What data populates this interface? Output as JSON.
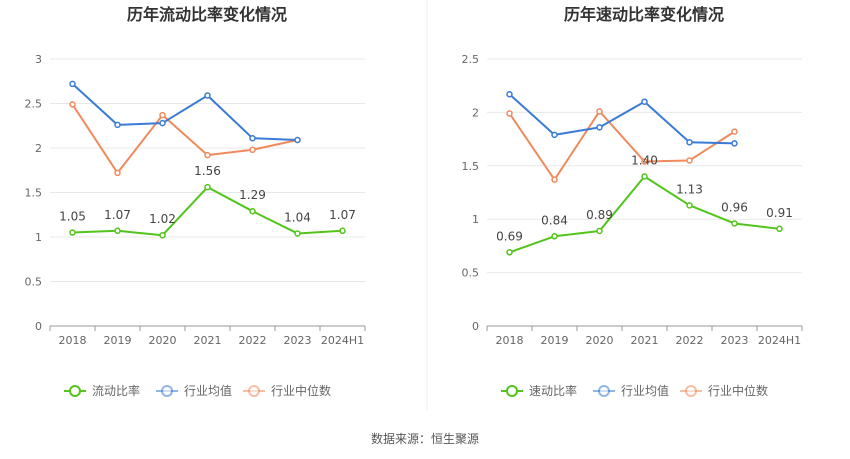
{
  "source": "数据来源：恒生聚源",
  "colors": {
    "company": "#52c41a",
    "industry_avg": "#3a7bd5",
    "industry_median": "#f08a5d",
    "axis": "#999999",
    "grid": "#e8e8e8",
    "text": "#666666",
    "title": "#333333",
    "divider": "#eeeeee"
  },
  "chart_data": [
    {
      "type": "line",
      "title": "历年流动比率变化情况",
      "categories": [
        "2018",
        "2019",
        "2020",
        "2021",
        "2022",
        "2023",
        "2024H1"
      ],
      "ylim": [
        0,
        3
      ],
      "yticks": [
        "0",
        "0.5",
        "1",
        "1.5",
        "2",
        "2.5",
        "3"
      ],
      "grid": true,
      "legend_position": "bottom",
      "series": [
        {
          "name": "流动比率",
          "values": [
            1.05,
            1.07,
            1.02,
            1.56,
            1.29,
            1.04,
            1.07
          ],
          "labels": [
            "1.05",
            "1.07",
            "1.02",
            "1.56",
            "1.29",
            "1.04",
            "1.07"
          ]
        },
        {
          "name": "行业均值",
          "values": [
            2.72,
            2.26,
            2.28,
            2.59,
            2.11,
            2.09,
            null
          ]
        },
        {
          "name": "行业中位数",
          "values": [
            2.49,
            1.72,
            2.37,
            1.92,
            1.98,
            2.09,
            null
          ]
        }
      ]
    },
    {
      "type": "line",
      "title": "历年速动比率变化情况",
      "categories": [
        "2018",
        "2019",
        "2020",
        "2021",
        "2022",
        "2023",
        "2024H1"
      ],
      "ylim": [
        0,
        2.5
      ],
      "yticks": [
        "0",
        "0.5",
        "1",
        "1.5",
        "2",
        "2.5"
      ],
      "grid": true,
      "legend_position": "bottom",
      "series": [
        {
          "name": "速动比率",
          "values": [
            0.69,
            0.84,
            0.89,
            1.4,
            1.13,
            0.96,
            0.91
          ],
          "labels": [
            "0.69",
            "0.84",
            "0.89",
            "1.40",
            "1.13",
            "0.96",
            "0.91"
          ]
        },
        {
          "name": "行业均值",
          "values": [
            2.17,
            1.79,
            1.86,
            2.1,
            1.72,
            1.71,
            null
          ]
        },
        {
          "name": "行业中位数",
          "values": [
            1.99,
            1.37,
            2.01,
            1.54,
            1.55,
            1.82,
            null
          ]
        }
      ]
    }
  ]
}
